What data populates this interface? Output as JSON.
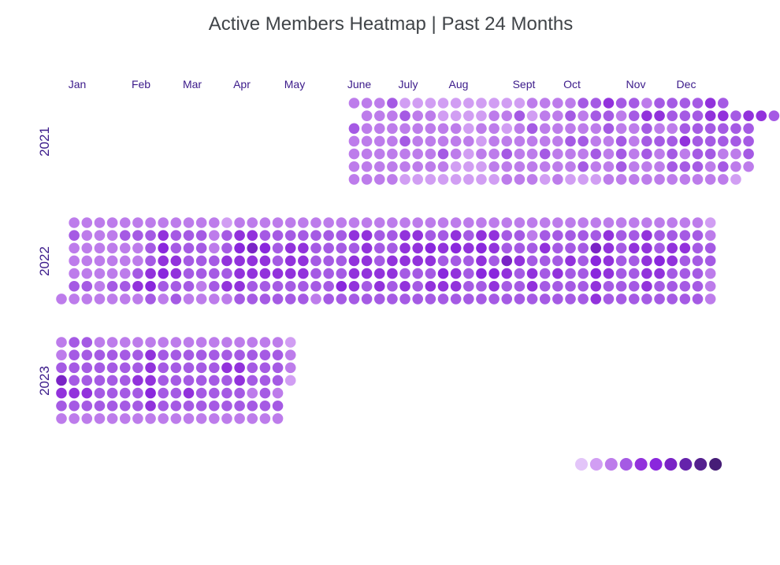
{
  "chart_data": {
    "type": "heatmap",
    "title": "Active Members Heatmap | Past 24 Months",
    "month_labels": [
      "Jan",
      "Feb",
      "Mar",
      "Apr",
      "May",
      "June",
      "July",
      "Aug",
      "Sept",
      "Oct",
      "Nov",
      "Dec"
    ],
    "years": [
      {
        "year": "2021",
        "first_week": 23,
        "cells": [
          [
            2,
            2,
            2,
            3,
            1,
            1,
            1,
            1,
            1,
            1,
            1,
            1,
            1,
            1,
            2,
            2,
            2,
            2,
            3,
            3,
            4,
            3,
            3,
            2,
            3,
            3,
            3,
            3,
            4,
            3
          ],
          [
            -1,
            2,
            2,
            2,
            3,
            2,
            2,
            1,
            1,
            1,
            1,
            2,
            2,
            3,
            1,
            2,
            2,
            3,
            2,
            3,
            3,
            2,
            3,
            4,
            4,
            3,
            3,
            3,
            4,
            4,
            3,
            4,
            4,
            3
          ],
          [
            3,
            2,
            2,
            2,
            2,
            2,
            2,
            2,
            2,
            1,
            2,
            2,
            1,
            2,
            3,
            2,
            2,
            2,
            2,
            2,
            3,
            2,
            2,
            3,
            2,
            2,
            3,
            3,
            3,
            3,
            3,
            3
          ],
          [
            2,
            2,
            2,
            2,
            3,
            2,
            2,
            2,
            2,
            2,
            1,
            2,
            2,
            2,
            2,
            2,
            2,
            3,
            3,
            2,
            2,
            3,
            2,
            3,
            3,
            3,
            4,
            3,
            3,
            3,
            3,
            3
          ],
          [
            2,
            2,
            2,
            2,
            2,
            2,
            2,
            3,
            2,
            1,
            2,
            2,
            3,
            2,
            2,
            3,
            2,
            2,
            2,
            3,
            2,
            3,
            2,
            3,
            2,
            3,
            2,
            3,
            3,
            2,
            2,
            3
          ],
          [
            2,
            2,
            2,
            2,
            2,
            2,
            2,
            2,
            1,
            1,
            1,
            2,
            2,
            2,
            2,
            2,
            2,
            2,
            3,
            2,
            2,
            3,
            2,
            2,
            2,
            3,
            3,
            3,
            2,
            3,
            2,
            2
          ],
          [
            2,
            2,
            2,
            2,
            1,
            1,
            1,
            1,
            1,
            1,
            1,
            1,
            2,
            2,
            2,
            1,
            2,
            1,
            1,
            1,
            2,
            2,
            2,
            2,
            2,
            2,
            2,
            2,
            2,
            2,
            1
          ]
        ]
      },
      {
        "year": "2022",
        "first_week": 0,
        "cells": [
          [
            -1,
            2,
            2,
            2,
            2,
            2,
            2,
            2,
            2,
            2,
            2,
            2,
            2,
            1,
            2,
            2,
            2,
            2,
            2,
            2,
            2,
            2,
            2,
            2,
            2,
            2,
            2,
            2,
            2,
            2,
            2,
            2,
            2,
            2,
            2,
            2,
            2,
            2,
            2,
            2,
            2,
            2,
            2,
            2,
            2,
            2,
            2,
            2,
            2,
            2,
            2,
            1
          ],
          [
            -1,
            3,
            2,
            2,
            2,
            3,
            3,
            3,
            4,
            3,
            3,
            3,
            2,
            3,
            4,
            4,
            3,
            3,
            3,
            3,
            3,
            3,
            3,
            4,
            4,
            3,
            3,
            4,
            4,
            3,
            3,
            4,
            3,
            4,
            4,
            3,
            3,
            2,
            3,
            3,
            3,
            3,
            3,
            4,
            3,
            3,
            4,
            3,
            3,
            3,
            3,
            2
          ],
          [
            -1,
            2,
            2,
            2,
            2,
            2,
            2,
            3,
            5,
            3,
            3,
            3,
            2,
            3,
            5,
            6,
            5,
            3,
            4,
            4,
            3,
            3,
            3,
            3,
            4,
            3,
            3,
            4,
            4,
            5,
            4,
            5,
            4,
            5,
            4,
            3,
            3,
            3,
            4,
            3,
            3,
            3,
            6,
            4,
            3,
            4,
            4,
            3,
            4,
            4,
            3,
            3
          ],
          [
            -1,
            2,
            2,
            2,
            2,
            2,
            2,
            3,
            4,
            4,
            3,
            3,
            3,
            4,
            4,
            4,
            4,
            3,
            4,
            4,
            3,
            3,
            3,
            4,
            4,
            3,
            4,
            4,
            4,
            4,
            3,
            3,
            3,
            4,
            3,
            6,
            4,
            3,
            3,
            3,
            4,
            3,
            5,
            4,
            3,
            3,
            4,
            5,
            4,
            3,
            3,
            3
          ],
          [
            -1,
            2,
            2,
            2,
            2,
            2,
            3,
            4,
            5,
            4,
            3,
            3,
            3,
            3,
            4,
            4,
            4,
            4,
            4,
            4,
            3,
            3,
            3,
            4,
            4,
            4,
            4,
            3,
            3,
            3,
            5,
            4,
            3,
            5,
            5,
            4,
            3,
            4,
            3,
            4,
            3,
            3,
            5,
            4,
            3,
            3,
            4,
            4,
            3,
            3,
            3,
            2
          ],
          [
            -1,
            3,
            3,
            2,
            3,
            3,
            4,
            5,
            3,
            3,
            3,
            2,
            3,
            4,
            4,
            3,
            3,
            3,
            3,
            3,
            3,
            3,
            5,
            4,
            3,
            4,
            3,
            4,
            3,
            4,
            4,
            4,
            3,
            3,
            4,
            3,
            3,
            4,
            3,
            3,
            3,
            3,
            4,
            3,
            3,
            3,
            4,
            3,
            3,
            3,
            3,
            2
          ],
          [
            2,
            2,
            2,
            2,
            2,
            2,
            2,
            3,
            2,
            3,
            2,
            2,
            2,
            2,
            3,
            3,
            3,
            3,
            3,
            3,
            2,
            3,
            3,
            3,
            3,
            3,
            3,
            3,
            3,
            3,
            3,
            3,
            3,
            3,
            3,
            3,
            3,
            3,
            3,
            3,
            3,
            3,
            4,
            3,
            3,
            3,
            3,
            3,
            3,
            3,
            3,
            2
          ]
        ]
      },
      {
        "year": "2023",
        "first_week": 0,
        "cells": [
          [
            2,
            3,
            3,
            2,
            2,
            2,
            2,
            2,
            2,
            2,
            2,
            2,
            2,
            2,
            2,
            2,
            2,
            2,
            1
          ],
          [
            2,
            3,
            3,
            3,
            3,
            3,
            3,
            4,
            3,
            3,
            3,
            3,
            3,
            3,
            3,
            3,
            3,
            3,
            2
          ],
          [
            3,
            3,
            3,
            3,
            3,
            3,
            3,
            4,
            3,
            3,
            3,
            3,
            3,
            4,
            4,
            3,
            3,
            3,
            2
          ],
          [
            6,
            3,
            3,
            3,
            3,
            3,
            4,
            4,
            3,
            3,
            3,
            3,
            3,
            3,
            4,
            3,
            3,
            3,
            1
          ],
          [
            4,
            4,
            4,
            3,
            3,
            3,
            3,
            5,
            3,
            3,
            4,
            3,
            3,
            3,
            3,
            2,
            3,
            2
          ],
          [
            3,
            3,
            3,
            3,
            3,
            3,
            3,
            4,
            3,
            3,
            3,
            3,
            3,
            3,
            3,
            3,
            3,
            3
          ],
          [
            2,
            2,
            2,
            2,
            2,
            2,
            2,
            2,
            2,
            2,
            2,
            2,
            2,
            2,
            2,
            2,
            2,
            2
          ]
        ]
      }
    ],
    "scale_colors": [
      "#e3c5f9",
      "#d19ef3",
      "#bd7ceb",
      "#a55ae4",
      "#9232dc",
      "#8a27dd",
      "#7a23c6",
      "#6523ab",
      "#55208f",
      "#461d77"
    ],
    "grid": false,
    "legend": "bottom-right"
  }
}
